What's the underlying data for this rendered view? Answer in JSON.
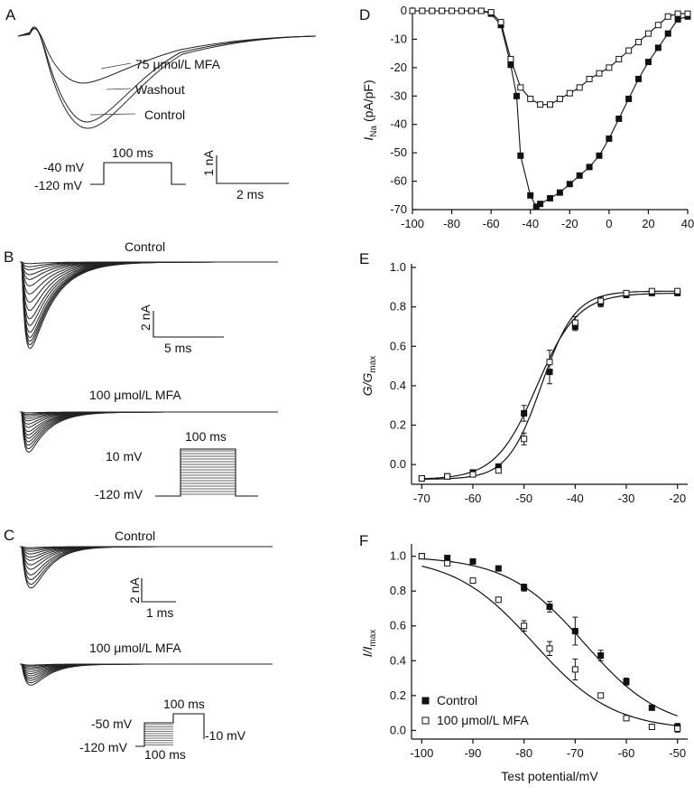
{
  "panels": {
    "A": "A",
    "B": "B",
    "C": "C",
    "D": "D",
    "E": "E",
    "F": "F"
  },
  "panel_a": {
    "labels": [
      "75 μmol/L MFA",
      "Washout",
      "Control"
    ],
    "protocol": {
      "hold": "-120 mV",
      "step": "-40 mV",
      "duration": "100 ms"
    },
    "scale": {
      "y": "1 nA",
      "x": "2 ms"
    }
  },
  "panel_b": {
    "control_title": "Control",
    "drug_title": "100 μmol/L MFA",
    "scale": {
      "y": "2 nA",
      "x": "5 ms"
    },
    "protocol": {
      "step": "10 mV",
      "hold": "-120 mV",
      "duration": "100 ms"
    }
  },
  "panel_c": {
    "control_title": "Control",
    "drug_title": "100 μmol/L MFA",
    "scale": {
      "y": "2 nA",
      "x": "1 ms"
    },
    "protocol": {
      "pre": "-50 mV",
      "hold": "-120 mV",
      "test": "-10 mV",
      "dur_test": "100 ms",
      "dur_pre": "100 ms"
    }
  },
  "chart_data": [
    {
      "panel": "D",
      "type": "line",
      "ylabel_main": "I",
      "ylabel_sub": "Na",
      "ylabel_unit": " (pA/pF)",
      "xlim": [
        -100,
        40
      ],
      "ylim": [
        -70,
        0
      ],
      "xticks": [
        -100,
        -80,
        -60,
        -40,
        -20,
        0,
        20,
        40
      ],
      "yticks": [
        0,
        -10,
        -20,
        -30,
        -40,
        -50,
        -60,
        -70
      ],
      "series": [
        {
          "name": "Control",
          "marker": "filled-square",
          "x": [
            -100,
            -95,
            -90,
            -85,
            -80,
            -75,
            -70,
            -65,
            -60,
            -55,
            -50,
            -47,
            -45,
            -40,
            -37,
            -35,
            -30,
            -25,
            -20,
            -15,
            -10,
            -5,
            0,
            5,
            10,
            15,
            20,
            25,
            30,
            35,
            40
          ],
          "y": [
            0,
            0,
            0,
            0,
            0,
            0,
            0,
            0,
            -1,
            -5,
            -19,
            -30,
            -51,
            -65,
            -69,
            -68,
            -66,
            -64,
            -61,
            -58,
            -55,
            -51,
            -45,
            -38,
            -31,
            -24,
            -18,
            -13,
            -8,
            -3,
            -2
          ]
        },
        {
          "name": "100 μmol/L MFA",
          "marker": "open-square",
          "x": [
            -100,
            -95,
            -90,
            -85,
            -80,
            -75,
            -70,
            -65,
            -60,
            -55,
            -50,
            -45,
            -40,
            -35,
            -30,
            -25,
            -20,
            -15,
            -10,
            -5,
            0,
            5,
            10,
            15,
            20,
            25,
            30,
            35,
            40
          ],
          "y": [
            0,
            0,
            0,
            0,
            0,
            0,
            0,
            0,
            -0.5,
            -4,
            -17,
            -27,
            -31,
            -33,
            -33,
            -31,
            -29,
            -27,
            -24,
            -22,
            -20,
            -17,
            -14,
            -11,
            -8,
            -5,
            -2,
            -1,
            -1
          ]
        }
      ]
    },
    {
      "panel": "E",
      "type": "scatter",
      "ylabel_main": "G/G",
      "ylabel_sub": "max",
      "xlim": [
        -72,
        -18
      ],
      "ylim": [
        -0.1,
        1.0
      ],
      "xticks": [
        -70,
        -60,
        -50,
        -40,
        -30,
        -20
      ],
      "yticks": [
        0.0,
        0.2,
        0.4,
        0.6,
        0.8,
        1.0
      ],
      "series": [
        {
          "name": "Control",
          "marker": "filled-square",
          "x": [
            -70,
            -65,
            -60,
            -55,
            -50,
            -45,
            -40,
            -35,
            -30,
            -25,
            -20
          ],
          "y": [
            -0.07,
            -0.06,
            -0.04,
            -0.01,
            0.26,
            0.47,
            0.7,
            0.82,
            0.86,
            0.87,
            0.87
          ],
          "err": [
            0.01,
            0.01,
            0.01,
            0.01,
            0.04,
            0.06,
            0.02,
            0.02,
            0.01,
            0.01,
            0.01
          ]
        },
        {
          "name": "100 μmol/L MFA",
          "marker": "open-square",
          "x": [
            -70,
            -65,
            -60,
            -55,
            -50,
            -45,
            -40,
            -35,
            -30,
            -25,
            -20
          ],
          "y": [
            -0.07,
            -0.06,
            -0.05,
            -0.03,
            0.13,
            0.52,
            0.72,
            0.83,
            0.87,
            0.88,
            0.88
          ],
          "err": [
            0.01,
            0.01,
            0.01,
            0.01,
            0.03,
            0.06,
            0.03,
            0.02,
            0.01,
            0.01,
            0.01
          ]
        }
      ],
      "fits": [
        {
          "v_half": -47.5,
          "k": 4.0,
          "gmax": 0.87,
          "gmin": -0.075
        },
        {
          "v_half": -46.6,
          "k": 3.3,
          "gmax": 0.88,
          "gmin": -0.075
        }
      ]
    },
    {
      "panel": "F",
      "type": "scatter",
      "ylabel_main": "I/I",
      "ylabel_sub": "max",
      "xlabel": "Test potential/mV",
      "xlim": [
        -102,
        -48
      ],
      "ylim": [
        -0.05,
        1.05
      ],
      "xticks": [
        -100,
        -90,
        -80,
        -70,
        -60,
        -50
      ],
      "yticks": [
        0.0,
        0.2,
        0.4,
        0.6,
        0.8,
        1.0
      ],
      "legend": "bottom-left",
      "series": [
        {
          "name": "Control",
          "marker": "filled-square",
          "x": [
            -100,
            -95,
            -90,
            -85,
            -80,
            -75,
            -70,
            -65,
            -60,
            -55,
            -50
          ],
          "y": [
            1.0,
            0.99,
            0.97,
            0.93,
            0.82,
            0.71,
            0.57,
            0.43,
            0.28,
            0.13,
            0.02
          ],
          "err": [
            0.01,
            0.01,
            0.01,
            0.01,
            0.02,
            0.03,
            0.08,
            0.03,
            0.02,
            0.01,
            0.02
          ]
        },
        {
          "name": "100 μmol/L MFA",
          "marker": "open-square",
          "x": [
            -100,
            -95,
            -90,
            -85,
            -80,
            -75,
            -70,
            -65,
            -60,
            -55,
            -50
          ],
          "y": [
            1.0,
            0.96,
            0.86,
            0.75,
            0.6,
            0.47,
            0.35,
            0.2,
            0.07,
            0.02,
            0.01
          ],
          "err": [
            0.01,
            0.01,
            0.01,
            0.01,
            0.03,
            0.04,
            0.06,
            0.01,
            0.01,
            0.01,
            0.02
          ]
        }
      ],
      "fits": [
        {
          "v_half": -68.2,
          "k": 7.6
        },
        {
          "v_half": -78.1,
          "k": 7.8
        }
      ]
    }
  ]
}
